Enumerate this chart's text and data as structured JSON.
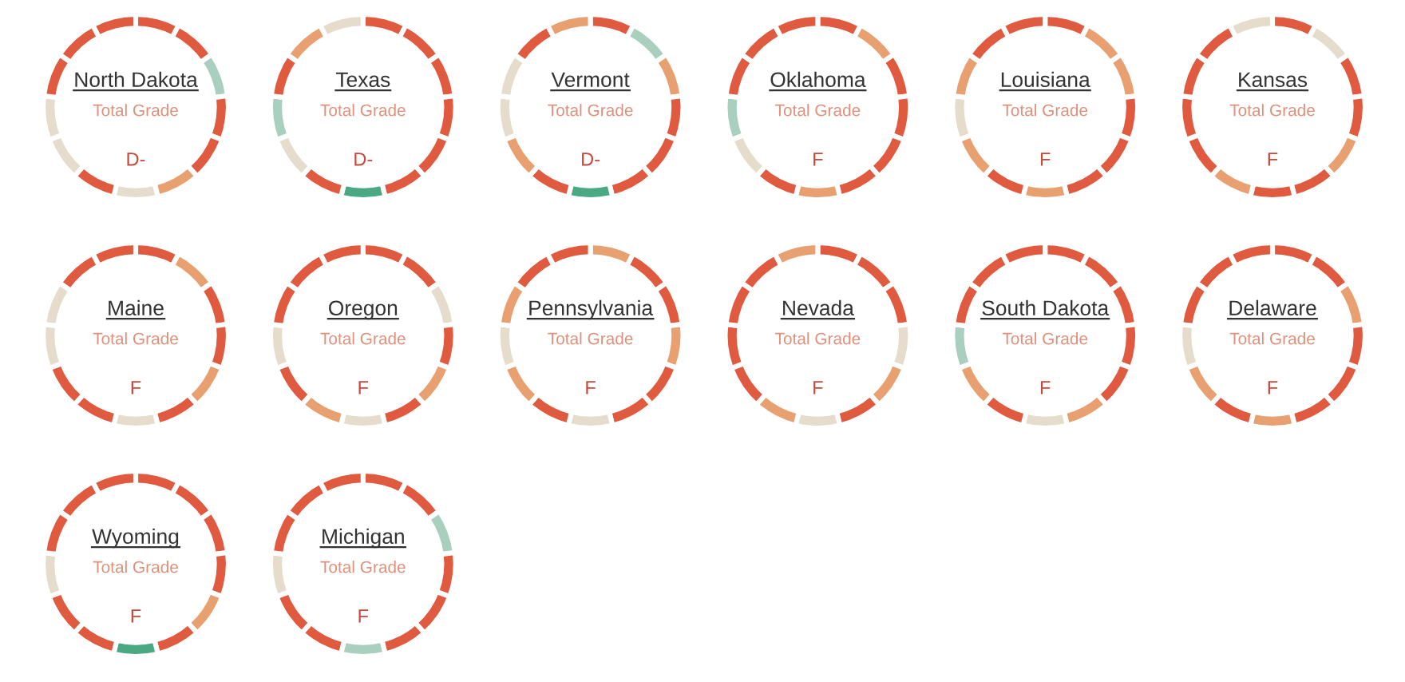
{
  "chart_data": [
    {
      "type": "donut",
      "title": "North Dakota",
      "subtitle": "Total Grade",
      "annotations": [
        "D-"
      ],
      "categories": [
        null,
        null,
        null,
        null,
        null,
        null,
        null,
        null,
        null,
        null,
        null,
        null,
        null
      ],
      "values": [
        7.69,
        7.69,
        7.69,
        7.69,
        7.69,
        7.69,
        7.69,
        7.69,
        7.69,
        7.69,
        7.69,
        7.69,
        7.69
      ],
      "colors": [
        "#e05a40",
        "#e05a40",
        "#a9cfbf",
        "#e05a40",
        "#e05a40",
        "#e8a070",
        "#e6dccb",
        "#e05a40",
        "#e6dccb",
        "#e6dccb",
        "#e05a40",
        "#e05a40",
        "#e05a40"
      ]
    },
    {
      "type": "donut",
      "title": "Texas",
      "subtitle": "Total Grade",
      "annotations": [
        "D-"
      ],
      "categories": [
        null,
        null,
        null,
        null,
        null,
        null,
        null,
        null,
        null,
        null,
        null,
        null,
        null
      ],
      "values": [
        7.69,
        7.69,
        7.69,
        7.69,
        7.69,
        7.69,
        7.69,
        7.69,
        7.69,
        7.69,
        7.69,
        7.69,
        7.69
      ],
      "colors": [
        "#e05a40",
        "#e05a40",
        "#e05a40",
        "#e05a40",
        "#e05a40",
        "#e05a40",
        "#4aa882",
        "#e05a40",
        "#e6dccb",
        "#a9cfbf",
        "#e05a40",
        "#e8a070",
        "#e6dccb"
      ]
    },
    {
      "type": "donut",
      "title": "Vermont",
      "subtitle": "Total Grade",
      "annotations": [
        "D-"
      ],
      "categories": [
        null,
        null,
        null,
        null,
        null,
        null,
        null,
        null,
        null,
        null,
        null,
        null,
        null
      ],
      "values": [
        7.69,
        7.69,
        7.69,
        7.69,
        7.69,
        7.69,
        7.69,
        7.69,
        7.69,
        7.69,
        7.69,
        7.69,
        7.69
      ],
      "colors": [
        "#e05a40",
        "#a9cfbf",
        "#e8a070",
        "#e05a40",
        "#e05a40",
        "#e05a40",
        "#4aa882",
        "#e05a40",
        "#e8a070",
        "#e6dccb",
        "#e6dccb",
        "#e05a40",
        "#e8a070"
      ]
    },
    {
      "type": "donut",
      "title": "Oklahoma",
      "subtitle": "Total Grade",
      "annotations": [
        "F"
      ],
      "categories": [
        null,
        null,
        null,
        null,
        null,
        null,
        null,
        null,
        null,
        null,
        null,
        null,
        null
      ],
      "values": [
        7.69,
        7.69,
        7.69,
        7.69,
        7.69,
        7.69,
        7.69,
        7.69,
        7.69,
        7.69,
        7.69,
        7.69,
        7.69
      ],
      "colors": [
        "#e05a40",
        "#e8a070",
        "#e05a40",
        "#e05a40",
        "#e05a40",
        "#e05a40",
        "#e8a070",
        "#e05a40",
        "#e6dccb",
        "#a9cfbf",
        "#e05a40",
        "#e05a40",
        "#e05a40"
      ]
    },
    {
      "type": "donut",
      "title": "Louisiana",
      "subtitle": "Total Grade",
      "annotations": [
        "F"
      ],
      "categories": [
        null,
        null,
        null,
        null,
        null,
        null,
        null,
        null,
        null,
        null,
        null,
        null,
        null
      ],
      "values": [
        7.69,
        7.69,
        7.69,
        7.69,
        7.69,
        7.69,
        7.69,
        7.69,
        7.69,
        7.69,
        7.69,
        7.69,
        7.69
      ],
      "colors": [
        "#e05a40",
        "#e8a070",
        "#e8a070",
        "#e05a40",
        "#e05a40",
        "#e05a40",
        "#e8a070",
        "#e05a40",
        "#e8a070",
        "#e6dccb",
        "#e8a070",
        "#e05a40",
        "#e05a40"
      ]
    },
    {
      "type": "donut",
      "title": "Kansas",
      "subtitle": "Total Grade",
      "annotations": [
        "F"
      ],
      "categories": [
        null,
        null,
        null,
        null,
        null,
        null,
        null,
        null,
        null,
        null,
        null,
        null,
        null
      ],
      "values": [
        7.69,
        7.69,
        7.69,
        7.69,
        7.69,
        7.69,
        7.69,
        7.69,
        7.69,
        7.69,
        7.69,
        7.69,
        7.69
      ],
      "colors": [
        "#e05a40",
        "#e6dccb",
        "#e05a40",
        "#e05a40",
        "#e8a070",
        "#e05a40",
        "#e05a40",
        "#e8a070",
        "#e05a40",
        "#e05a40",
        "#e05a40",
        "#e05a40",
        "#e6dccb"
      ]
    },
    {
      "type": "donut",
      "title": "Maine",
      "subtitle": "Total Grade",
      "annotations": [
        "F"
      ],
      "categories": [
        null,
        null,
        null,
        null,
        null,
        null,
        null,
        null,
        null,
        null,
        null,
        null,
        null
      ],
      "values": [
        7.69,
        7.69,
        7.69,
        7.69,
        7.69,
        7.69,
        7.69,
        7.69,
        7.69,
        7.69,
        7.69,
        7.69,
        7.69
      ],
      "colors": [
        "#e05a40",
        "#e8a070",
        "#e05a40",
        "#e05a40",
        "#e8a070",
        "#e05a40",
        "#e6dccb",
        "#e05a40",
        "#e05a40",
        "#e6dccb",
        "#e6dccb",
        "#e05a40",
        "#e05a40"
      ]
    },
    {
      "type": "donut",
      "title": "Oregon",
      "subtitle": "Total Grade",
      "annotations": [
        "F"
      ],
      "categories": [
        null,
        null,
        null,
        null,
        null,
        null,
        null,
        null,
        null,
        null,
        null,
        null,
        null
      ],
      "values": [
        7.69,
        7.69,
        7.69,
        7.69,
        7.69,
        7.69,
        7.69,
        7.69,
        7.69,
        7.69,
        7.69,
        7.69,
        7.69
      ],
      "colors": [
        "#e05a40",
        "#e05a40",
        "#e6dccb",
        "#e05a40",
        "#e8a070",
        "#e05a40",
        "#e6dccb",
        "#e8a070",
        "#e05a40",
        "#e6dccb",
        "#e05a40",
        "#e05a40",
        "#e05a40"
      ]
    },
    {
      "type": "donut",
      "title": "Pennsylvania",
      "subtitle": "Total Grade",
      "annotations": [
        "F"
      ],
      "categories": [
        null,
        null,
        null,
        null,
        null,
        null,
        null,
        null,
        null,
        null,
        null,
        null,
        null
      ],
      "values": [
        7.69,
        7.69,
        7.69,
        7.69,
        7.69,
        7.69,
        7.69,
        7.69,
        7.69,
        7.69,
        7.69,
        7.69,
        7.69
      ],
      "colors": [
        "#e8a070",
        "#e05a40",
        "#e05a40",
        "#e8a070",
        "#e05a40",
        "#e05a40",
        "#e6dccb",
        "#e05a40",
        "#e8a070",
        "#e6dccb",
        "#e8a070",
        "#e05a40",
        "#e05a40"
      ]
    },
    {
      "type": "donut",
      "title": "Nevada",
      "subtitle": "Total Grade",
      "annotations": [
        "F"
      ],
      "categories": [
        null,
        null,
        null,
        null,
        null,
        null,
        null,
        null,
        null,
        null,
        null,
        null,
        null
      ],
      "values": [
        7.69,
        7.69,
        7.69,
        7.69,
        7.69,
        7.69,
        7.69,
        7.69,
        7.69,
        7.69,
        7.69,
        7.69,
        7.69
      ],
      "colors": [
        "#e05a40",
        "#e05a40",
        "#e05a40",
        "#e6dccb",
        "#e8a070",
        "#e05a40",
        "#e6dccb",
        "#e8a070",
        "#e05a40",
        "#e05a40",
        "#e05a40",
        "#e05a40",
        "#e8a070"
      ]
    },
    {
      "type": "donut",
      "title": "South Dakota",
      "subtitle": "Total Grade",
      "annotations": [
        "F"
      ],
      "categories": [
        null,
        null,
        null,
        null,
        null,
        null,
        null,
        null,
        null,
        null,
        null,
        null,
        null
      ],
      "values": [
        7.69,
        7.69,
        7.69,
        7.69,
        7.69,
        7.69,
        7.69,
        7.69,
        7.69,
        7.69,
        7.69,
        7.69,
        7.69
      ],
      "colors": [
        "#e05a40",
        "#e05a40",
        "#e05a40",
        "#e05a40",
        "#e05a40",
        "#e8a070",
        "#e6dccb",
        "#e05a40",
        "#e8a070",
        "#a9cfbf",
        "#e05a40",
        "#e05a40",
        "#e05a40"
      ]
    },
    {
      "type": "donut",
      "title": "Delaware",
      "subtitle": "Total Grade",
      "annotations": [
        "F"
      ],
      "categories": [
        null,
        null,
        null,
        null,
        null,
        null,
        null,
        null,
        null,
        null,
        null,
        null,
        null
      ],
      "values": [
        7.69,
        7.69,
        7.69,
        7.69,
        7.69,
        7.69,
        7.69,
        7.69,
        7.69,
        7.69,
        7.69,
        7.69,
        7.69
      ],
      "colors": [
        "#e05a40",
        "#e05a40",
        "#e8a070",
        "#e05a40",
        "#e05a40",
        "#e05a40",
        "#e8a070",
        "#e05a40",
        "#e8a070",
        "#e6dccb",
        "#e05a40",
        "#e05a40",
        "#e05a40"
      ]
    },
    {
      "type": "donut",
      "title": "Wyoming",
      "subtitle": "Total Grade",
      "annotations": [
        "F"
      ],
      "categories": [
        null,
        null,
        null,
        null,
        null,
        null,
        null,
        null,
        null,
        null,
        null,
        null,
        null
      ],
      "values": [
        7.69,
        7.69,
        7.69,
        7.69,
        7.69,
        7.69,
        7.69,
        7.69,
        7.69,
        7.69,
        7.69,
        7.69,
        7.69
      ],
      "colors": [
        "#e05a40",
        "#e05a40",
        "#e05a40",
        "#e05a40",
        "#e8a070",
        "#e05a40",
        "#4aa882",
        "#e05a40",
        "#e05a40",
        "#e6dccb",
        "#e05a40",
        "#e05a40",
        "#e05a40"
      ]
    },
    {
      "type": "donut",
      "title": "Michigan",
      "subtitle": "Total Grade",
      "annotations": [
        "F"
      ],
      "categories": [
        null,
        null,
        null,
        null,
        null,
        null,
        null,
        null,
        null,
        null,
        null,
        null,
        null
      ],
      "values": [
        7.69,
        7.69,
        7.69,
        7.69,
        7.69,
        7.69,
        7.69,
        7.69,
        7.69,
        7.69,
        7.69,
        7.69,
        7.69
      ],
      "colors": [
        "#e05a40",
        "#e05a40",
        "#a9cfbf",
        "#e05a40",
        "#e05a40",
        "#e05a40",
        "#a9cfbf",
        "#e05a40",
        "#e05a40",
        "#e6dccb",
        "#e05a40",
        "#e05a40",
        "#e05a40"
      ]
    }
  ]
}
